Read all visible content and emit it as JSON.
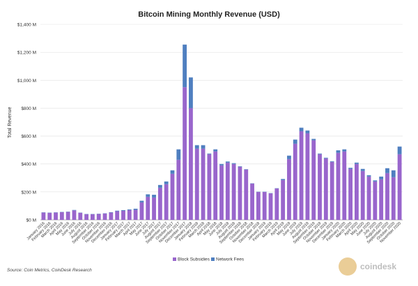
{
  "chart_data": {
    "type": "bar",
    "stacked": true,
    "title": "Bitcoin Mining Monthly Revenue (USD)",
    "ylabel": "Total Revenue",
    "xlabel": "",
    "ylim": [
      0,
      1400
    ],
    "y_unit": "M",
    "y_ticks": [
      "$0 M",
      "$200 M",
      "$400 M",
      "$600 M",
      "$800 M",
      "$1,000 M",
      "$1,200 M",
      "$1,400 M"
    ],
    "grid": true,
    "legend_position": "bottom",
    "categories": [
      "January 2016",
      "February 2016",
      "March 2016",
      "April 2016",
      "May 2016",
      "June 2016",
      "July 2016",
      "August 2016",
      "September 2016",
      "October 2016",
      "November 2016",
      "December 2016",
      "January 2017",
      "February 2017",
      "March 2017",
      "April 2017",
      "May 2017",
      "June 2017",
      "July 2017",
      "August 2017",
      "September 2017",
      "October 2017",
      "November 2017",
      "December 2017",
      "January 2018",
      "February 2018",
      "March 2018",
      "April 2018",
      "May 2018",
      "June 2018",
      "July 2018",
      "August 2018",
      "September 2018",
      "October 2018",
      "November 2018",
      "December 2018",
      "January 2019",
      "February 2019",
      "March 2019",
      "April 2019",
      "May 2019",
      "June 2019",
      "July 2019",
      "August 2019",
      "September 2019",
      "October 2019",
      "November 2019",
      "December 2019",
      "January 2020",
      "February 2020",
      "March 2020",
      "April 2020",
      "May 2020",
      "June 2020",
      "July 2020",
      "August 2020",
      "September 2020",
      "October 2020",
      "November 2020"
    ],
    "series": [
      {
        "name": "Block Subsidies",
        "color": "#9966cc",
        "values": [
          52,
          50,
          52,
          55,
          57,
          68,
          50,
          40,
          40,
          42,
          45,
          52,
          62,
          65,
          70,
          72,
          125,
          165,
          160,
          230,
          255,
          330,
          430,
          950,
          800,
          510,
          510,
          470,
          490,
          390,
          410,
          400,
          380,
          360,
          260,
          200,
          200,
          190,
          225,
          285,
          435,
          545,
          635,
          620,
          570,
          470,
          440,
          415,
          480,
          490,
          365,
          400,
          350,
          310,
          275,
          290,
          335,
          305,
          470
        ]
      },
      {
        "name": "Network Fees",
        "color": "#4f7fc0",
        "values": [
          2,
          2,
          2,
          2,
          2,
          3,
          2,
          2,
          2,
          2,
          2,
          3,
          4,
          5,
          5,
          8,
          12,
          18,
          20,
          20,
          20,
          25,
          75,
          305,
          220,
          25,
          25,
          5,
          15,
          10,
          8,
          6,
          4,
          3,
          2,
          2,
          2,
          2,
          2,
          8,
          25,
          30,
          25,
          20,
          10,
          5,
          5,
          5,
          18,
          15,
          8,
          10,
          15,
          10,
          8,
          20,
          35,
          50,
          55
        ]
      }
    ],
    "source": "Source: Coin Metrics, CoinDesk Research",
    "watermark": "coindesk"
  }
}
